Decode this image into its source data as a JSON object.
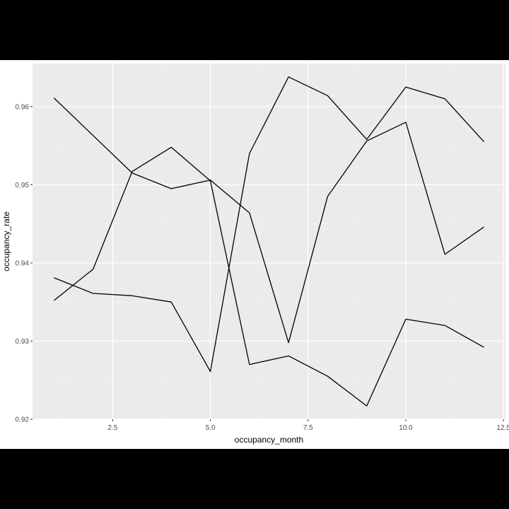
{
  "chart_data": {
    "type": "line",
    "title": "",
    "xlabel": "occupancy_month",
    "ylabel": "occupancy_rate",
    "xlim": [
      0.45,
      12.55
    ],
    "ylim": [
      0.92,
      0.9655
    ],
    "xticks": [
      2.5,
      5.0,
      7.5,
      10.0,
      12.5
    ],
    "xtick_labels": [
      "2.5",
      "5.0",
      "7.5",
      "10.0",
      "12.5"
    ],
    "yticks": [
      0.92,
      0.93,
      0.94,
      0.95,
      0.96
    ],
    "ytick_labels": [
      "0.92",
      "0.93",
      "0.94",
      "0.95",
      "0.96"
    ],
    "grid": true,
    "panel_background": "#ebebeb",
    "line_color": "#000000",
    "x": [
      1,
      2,
      3,
      4,
      5,
      6,
      7,
      8,
      9,
      10,
      11,
      12
    ],
    "series": [
      {
        "values": [
          0.9611,
          0.9563,
          0.9515,
          0.9495,
          0.9506,
          0.9464,
          0.9298,
          0.9485,
          0.9556,
          0.958,
          0.9411,
          0.9446
        ]
      },
      {
        "values": [
          0.9352,
          0.9392,
          0.9517,
          0.9548,
          0.9505,
          0.927,
          0.9281,
          0.9255,
          0.9217,
          0.9328,
          0.932,
          0.9292
        ]
      },
      {
        "values": [
          0.9381,
          0.9361,
          0.9358,
          0.935,
          0.9261,
          0.954,
          0.9638,
          0.9614,
          0.9558,
          0.9625,
          0.961,
          0.9555
        ]
      }
    ]
  }
}
